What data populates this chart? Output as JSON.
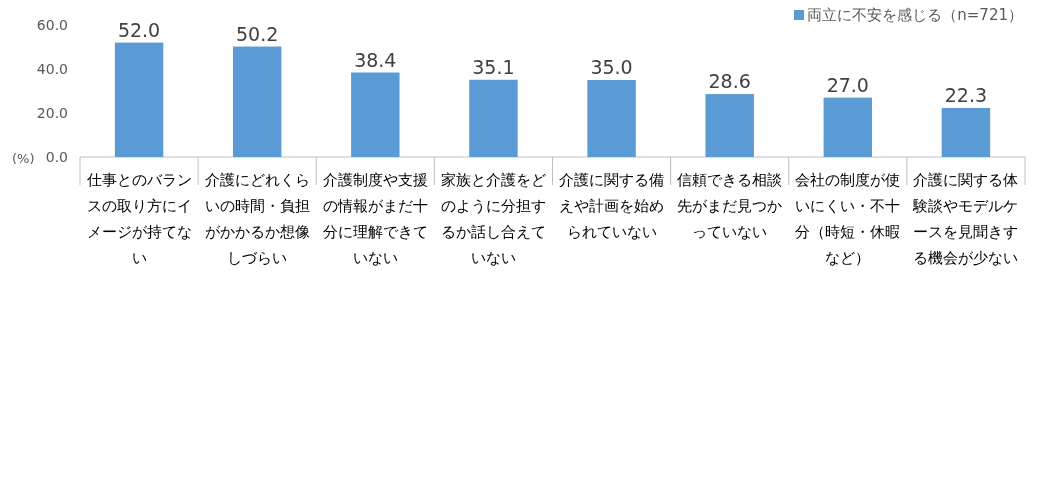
{
  "chart_data": {
    "type": "bar",
    "categories": [
      "仕事とのバランスの取り方にイメージが持てない",
      "介護にどれくらいの時間・負担がかかるか想像しづらい",
      "介護制度や支援の情報がまだ十分に理解できていない",
      "家族と介護をどのように分担するか話し合えていない",
      "介護に関する備えや計画を始められていない",
      "信頼できる相談先がまだ見つかっていない",
      "会社の制度が使いにくい・不十分（時短・休暇など）",
      "介護に関する体験談やモデルケースを見聞きする機会が少ない"
    ],
    "series": [
      {
        "name": "両立に不安を感じる（n=721）",
        "color": "#5b9bd5",
        "values": [
          52.0,
          50.2,
          38.4,
          35.1,
          35.0,
          28.6,
          27.0,
          22.3
        ],
        "value_labels": [
          "52.0",
          "50.2",
          "38.4",
          "35.1",
          "35.0",
          "28.6",
          "27.0",
          "22.3"
        ]
      }
    ],
    "ylim": [
      0,
      60
    ],
    "yticks": [
      {
        "value": 0,
        "label": "0.0"
      },
      {
        "value": 20,
        "label": "20.0"
      },
      {
        "value": 40,
        "label": "40.0"
      },
      {
        "value": 60,
        "label": "60.0"
      }
    ],
    "grid": false,
    "legend": "top right",
    "annotations": [
      "(%)"
    ]
  }
}
